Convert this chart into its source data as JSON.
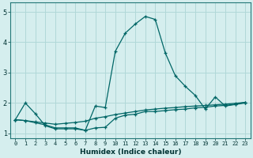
{
  "xlabel": "Humidex (Indice chaleur)",
  "background_color": "#d5eeee",
  "grid_color": "#b0d8d8",
  "line_color": "#006666",
  "x_values": [
    0,
    1,
    2,
    3,
    4,
    5,
    6,
    7,
    8,
    9,
    10,
    11,
    12,
    13,
    14,
    15,
    16,
    17,
    18,
    19,
    20,
    21,
    22,
    23
  ],
  "series1": [
    1.45,
    2.0,
    1.65,
    1.25,
    1.15,
    1.15,
    1.15,
    1.1,
    1.9,
    1.85,
    3.7,
    4.3,
    4.6,
    4.85,
    4.75,
    3.65,
    2.9,
    2.55,
    2.25,
    1.8,
    2.2,
    1.9,
    1.95,
    2.0
  ],
  "series2": [
    1.45,
    1.42,
    1.38,
    1.34,
    1.3,
    1.33,
    1.36,
    1.4,
    1.5,
    1.55,
    1.62,
    1.67,
    1.72,
    1.77,
    1.8,
    1.83,
    1.85,
    1.88,
    1.9,
    1.92,
    1.94,
    1.96,
    1.99,
    2.02
  ],
  "series3": [
    1.45,
    1.42,
    1.35,
    1.28,
    1.18,
    1.18,
    1.18,
    1.1,
    1.18,
    1.2,
    1.5,
    1.6,
    1.63,
    1.72,
    1.72,
    1.75,
    1.78,
    1.8,
    1.84,
    1.86,
    1.9,
    1.92,
    1.96,
    2.02
  ],
  "ylim": [
    0.85,
    5.3
  ],
  "xlim": [
    -0.5,
    23.5
  ],
  "yticks": [
    1,
    2,
    3,
    4,
    5
  ],
  "xticks": [
    0,
    1,
    2,
    3,
    4,
    5,
    6,
    7,
    8,
    9,
    10,
    11,
    12,
    13,
    14,
    15,
    16,
    17,
    18,
    19,
    20,
    21,
    22,
    23
  ]
}
